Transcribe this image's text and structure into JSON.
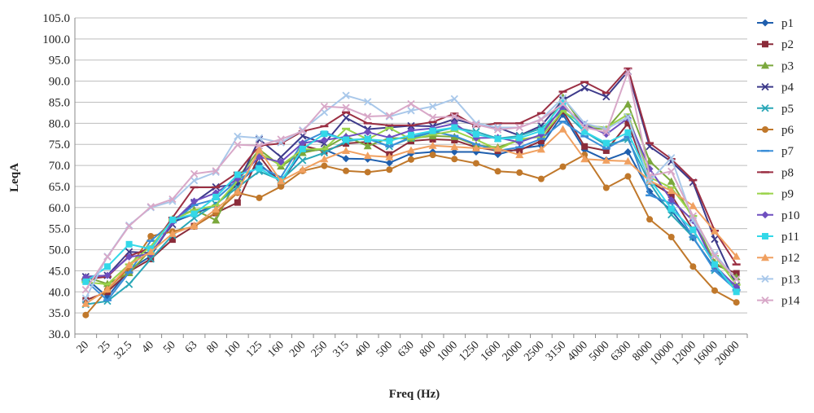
{
  "chart_data": {
    "type": "line",
    "xlabel": "Freq (Hz)",
    "ylabel": "LeqA",
    "ylim": [
      30,
      105
    ],
    "ytick_step": 5,
    "y_tick_labels": [
      "30.0",
      "35.0",
      "40.0",
      "45.0",
      "50.0",
      "55.0",
      "60.0",
      "65.0",
      "70.0",
      "75.0",
      "80.0",
      "85.0",
      "90.0",
      "95.0",
      "100.0",
      "105.0"
    ],
    "grid": "horizontal",
    "legend_position": "right",
    "categories": [
      "20",
      "25",
      "32.5",
      "40",
      "50",
      "63",
      "80",
      "100",
      "125",
      "160",
      "200",
      "250",
      "315",
      "400",
      "500",
      "630",
      "800",
      "1000",
      "1250",
      "1600",
      "2000",
      "2500",
      "3150",
      "4000",
      "5000",
      "6300",
      "8000",
      "10000",
      "12000",
      "16000",
      "20000"
    ],
    "series": [
      {
        "name": "p1",
        "color": "#1f5fae",
        "marker": "diamond",
        "values": [
          43.3,
          38.8,
          45.2,
          48.5,
          56.5,
          58.5,
          60.6,
          65.6,
          70.3,
          66.1,
          73.3,
          73.8,
          71.6,
          71.5,
          70.6,
          72.8,
          73.2,
          73.2,
          73.2,
          72.6,
          74.0,
          74.7,
          82.1,
          73.7,
          71.3,
          73.2,
          63.8,
          59.3,
          52.8,
          45.6,
          40.5
        ]
      },
      {
        "name": "p2",
        "color": "#8b2c3a",
        "marker": "square",
        "values": [
          38.0,
          40.0,
          44.8,
          47.8,
          52.4,
          55.6,
          58.7,
          61.2,
          72.3,
          65.5,
          74.7,
          73.4,
          75.2,
          75.6,
          72.6,
          75.8,
          76.2,
          76.0,
          74.3,
          73.5,
          73.6,
          75.8,
          82.9,
          74.5,
          73.5,
          80.0,
          66.2,
          63.0,
          54.7,
          46.5,
          44.4
        ]
      },
      {
        "name": "p3",
        "color": "#7ba83c",
        "marker": "triangle",
        "values": [
          43.5,
          41.9,
          44.5,
          50.0,
          57.3,
          59.5,
          57.0,
          66.9,
          73.8,
          69.8,
          73.0,
          74.0,
          76.9,
          74.6,
          76.5,
          76.4,
          77.0,
          76.8,
          74.8,
          74.3,
          76.0,
          77.0,
          86.2,
          79.0,
          78.6,
          84.5,
          71.0,
          66.2,
          57.5,
          47.0,
          43.5
        ]
      },
      {
        "name": "p4",
        "color": "#3d3a8a",
        "marker": "x",
        "values": [
          43.6,
          43.9,
          49.5,
          49.2,
          56.0,
          61.2,
          64.9,
          65.5,
          76.2,
          72.0,
          77.0,
          75.2,
          81.3,
          78.6,
          79.0,
          79.4,
          79.3,
          81.0,
          79.6,
          79.0,
          77.1,
          79.4,
          85.5,
          88.4,
          86.3,
          92.3,
          74.5,
          70.9,
          66.0,
          52.5,
          41.5
        ]
      },
      {
        "name": "p5",
        "color": "#2aa7b7",
        "marker": "x",
        "values": [
          37.0,
          37.8,
          41.8,
          47.8,
          53.4,
          57.5,
          60.8,
          64.8,
          68.6,
          66.5,
          71.2,
          73.0,
          75.7,
          76.5,
          74.5,
          76.5,
          77.8,
          79.0,
          78.0,
          76.4,
          77.0,
          78.8,
          83.0,
          78.0,
          74.8,
          76.2,
          65.9,
          58.3,
          53.0,
          45.1,
          40.9
        ]
      },
      {
        "name": "p6",
        "color": "#c0782b",
        "marker": "circle",
        "values": [
          34.5,
          40.5,
          45.7,
          53.2,
          54.3,
          55.5,
          58.8,
          63.5,
          62.3,
          65.0,
          68.7,
          69.9,
          68.7,
          68.4,
          69.0,
          71.4,
          72.5,
          71.5,
          70.5,
          68.6,
          68.3,
          66.8,
          69.7,
          72.5,
          64.7,
          67.4,
          57.2,
          53.0,
          46.0,
          40.3,
          37.5
        ]
      },
      {
        "name": "p7",
        "color": "#3a8ed8",
        "marker": "dash",
        "values": [
          42.6,
          38.0,
          44.6,
          52.1,
          56.5,
          60.6,
          62.0,
          66.5,
          69.7,
          67.2,
          75.5,
          77.9,
          76.0,
          76.3,
          74.5,
          76.7,
          78.0,
          77.0,
          75.0,
          73.5,
          74.3,
          76.3,
          80.4,
          76.9,
          74.0,
          76.8,
          62.9,
          61.0,
          53.0,
          45.0,
          40.4
        ]
      },
      {
        "name": "p8",
        "color": "#9b2f43",
        "marker": "dash",
        "values": [
          43.0,
          43.6,
          48.5,
          50.4,
          57.6,
          64.8,
          64.8,
          68.3,
          74.7,
          75.2,
          78.1,
          79.3,
          82.6,
          80.0,
          79.5,
          79.5,
          80.3,
          82.3,
          79.3,
          80.0,
          80.0,
          82.4,
          87.5,
          89.8,
          87.2,
          93.0,
          75.3,
          71.5,
          66.5,
          54.5,
          46.5
        ]
      },
      {
        "name": "p9",
        "color": "#9ad34a",
        "marker": "dash",
        "values": [
          42.3,
          41.8,
          46.5,
          50.8,
          57.0,
          59.4,
          60.5,
          66.3,
          72.9,
          70.0,
          73.8,
          73.9,
          78.7,
          76.2,
          78.9,
          76.2,
          77.3,
          78.2,
          76.1,
          73.8,
          76.2,
          76.8,
          82.9,
          79.5,
          79.0,
          82.1,
          67.2,
          64.7,
          58.0,
          48.5,
          41.7
        ]
      },
      {
        "name": "p10",
        "color": "#6e4fbf",
        "marker": "diamond",
        "values": [
          43.5,
          43.9,
          48.3,
          49.0,
          56.5,
          61.5,
          63.5,
          66.8,
          72.0,
          70.8,
          75.3,
          76.0,
          76.8,
          77.9,
          76.6,
          78.3,
          78.8,
          79.9,
          76.5,
          76.6,
          75.5,
          77.3,
          84.0,
          79.7,
          77.4,
          81.2,
          69.2,
          61.8,
          56.9,
          46.2,
          41.2
        ]
      },
      {
        "name": "p11",
        "color": "#33d8e8",
        "marker": "square",
        "values": [
          42.4,
          46.0,
          51.3,
          50.2,
          57.1,
          58.5,
          62.5,
          67.8,
          69.3,
          66.3,
          73.9,
          77.5,
          76.1,
          76.2,
          75.8,
          77.2,
          78.2,
          79.0,
          77.4,
          76.3,
          76.5,
          78.2,
          84.9,
          78.0,
          75.3,
          77.8,
          66.8,
          59.7,
          54.7,
          46.5,
          40.0
        ]
      },
      {
        "name": "p12",
        "color": "#f0a060",
        "marker": "triangle",
        "values": [
          37.2,
          40.6,
          46.4,
          49.5,
          53.8,
          55.7,
          59.6,
          63.8,
          73.7,
          66.3,
          69.0,
          71.5,
          73.5,
          72.3,
          72.0,
          73.6,
          74.7,
          74.4,
          74.1,
          74.0,
          72.5,
          73.8,
          78.6,
          71.5,
          71.2,
          71.0,
          66.3,
          64.0,
          60.4,
          54.4,
          48.4
        ]
      },
      {
        "name": "p13",
        "color": "#a9c8ea",
        "marker": "x",
        "values": [
          38.5,
          48.4,
          55.8,
          60.0,
          61.5,
          66.4,
          68.4,
          76.9,
          76.5,
          75.4,
          78.4,
          82.6,
          86.6,
          85.1,
          81.6,
          83.0,
          84.0,
          85.8,
          80.0,
          79.0,
          79.0,
          81.0,
          86.0,
          80.0,
          78.6,
          81.5,
          66.3,
          71.8,
          57.0,
          49.0,
          43.0
        ]
      },
      {
        "name": "p14",
        "color": "#d8a8c8",
        "marker": "x",
        "values": [
          40.5,
          48.3,
          55.6,
          60.2,
          62.0,
          68.0,
          68.7,
          74.9,
          74.7,
          76.2,
          78.1,
          84.0,
          83.7,
          81.6,
          81.8,
          84.6,
          81.4,
          81.6,
          79.7,
          78.5,
          79.0,
          80.9,
          84.6,
          79.0,
          77.9,
          92.2,
          67.5,
          68.6,
          58.0,
          48.5,
          43.0
        ]
      }
    ]
  }
}
